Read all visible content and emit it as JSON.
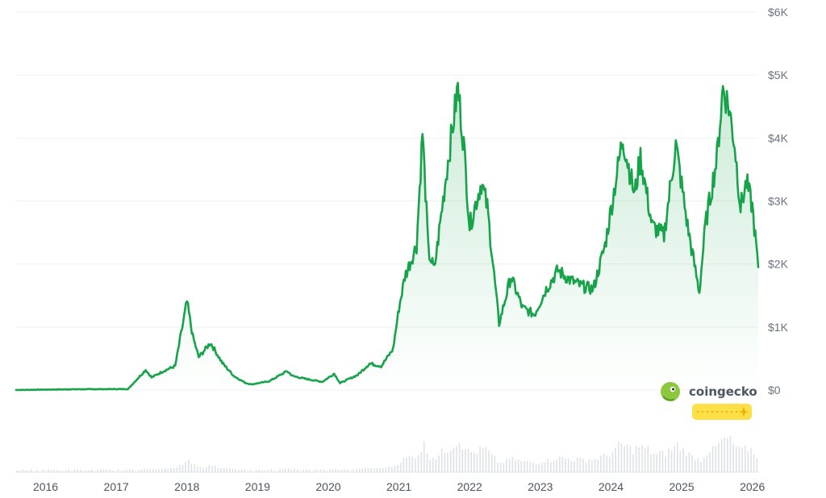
{
  "chart_data": {
    "type": "area",
    "title": "",
    "xlabel": "",
    "ylabel": "",
    "x_tick_labels": [
      "2016",
      "2017",
      "2018",
      "2019",
      "2020",
      "2021",
      "2022",
      "2023",
      "2024",
      "2025",
      "2026"
    ],
    "y_tick_labels": [
      "$0",
      "$1K",
      "$2K",
      "$3K",
      "$4K",
      "$5K",
      "$6K"
    ],
    "ylim": [
      0,
      6000
    ],
    "xlim": [
      "2015-08",
      "2026-02"
    ],
    "grid": true,
    "line_color": "#16a34a",
    "fill_color": "#16a34a",
    "volume_color": "#d1d5db",
    "series": [
      {
        "values": [
          [
            "2015-08",
            1
          ],
          [
            "2016-06",
            12
          ],
          [
            "2017-03",
            15
          ],
          [
            "2017-06",
            320
          ],
          [
            "2017-07",
            200
          ],
          [
            "2017-09",
            300
          ],
          [
            "2017-11",
            380
          ],
          [
            "2018-01",
            1400
          ],
          [
            "2018-02",
            850
          ],
          [
            "2018-03",
            520
          ],
          [
            "2018-05",
            750
          ],
          [
            "2018-07",
            430
          ],
          [
            "2018-09",
            220
          ],
          [
            "2018-11",
            110
          ],
          [
            "2018-12",
            90
          ],
          [
            "2019-03",
            140
          ],
          [
            "2019-06",
            300
          ],
          [
            "2019-07",
            220
          ],
          [
            "2019-09",
            180
          ],
          [
            "2019-12",
            130
          ],
          [
            "2020-02",
            260
          ],
          [
            "2020-03",
            110
          ],
          [
            "2020-06",
            240
          ],
          [
            "2020-08",
            420
          ],
          [
            "2020-10",
            380
          ],
          [
            "2020-12",
            650
          ],
          [
            "2021-01",
            1300
          ],
          [
            "2021-02",
            1800
          ],
          [
            "2021-04",
            2300
          ],
          [
            "2021-05",
            4100
          ],
          [
            "2021-06",
            2200
          ],
          [
            "2021-07",
            1900
          ],
          [
            "2021-09",
            3400
          ],
          [
            "2021-11",
            4800
          ],
          [
            "2021-12",
            3900
          ],
          [
            "2022-01",
            2600
          ],
          [
            "2022-03",
            3300
          ],
          [
            "2022-04",
            2900
          ],
          [
            "2022-06",
            1050
          ],
          [
            "2022-08",
            1800
          ],
          [
            "2022-10",
            1300
          ],
          [
            "2022-12",
            1200
          ],
          [
            "2023-02",
            1600
          ],
          [
            "2023-04",
            1900
          ],
          [
            "2023-06",
            1750
          ],
          [
            "2023-08",
            1650
          ],
          [
            "2023-10",
            1600
          ],
          [
            "2023-12",
            2300
          ],
          [
            "2024-03",
            4000
          ],
          [
            "2024-05",
            3100
          ],
          [
            "2024-06",
            3700
          ],
          [
            "2024-08",
            2600
          ],
          [
            "2024-10",
            2450
          ],
          [
            "2024-12",
            3900
          ],
          [
            "2025-02",
            2600
          ],
          [
            "2025-04",
            1550
          ],
          [
            "2025-05",
            2600
          ],
          [
            "2025-07",
            3700
          ],
          [
            "2025-08",
            4800
          ],
          [
            "2025-09",
            4500
          ],
          [
            "2025-10",
            3900
          ],
          [
            "2025-11",
            2900
          ],
          [
            "2025-12",
            3300
          ],
          [
            "2026-01",
            2900
          ],
          [
            "2026-02",
            1950
          ]
        ]
      }
    ],
    "logo_text": "coingecko"
  }
}
